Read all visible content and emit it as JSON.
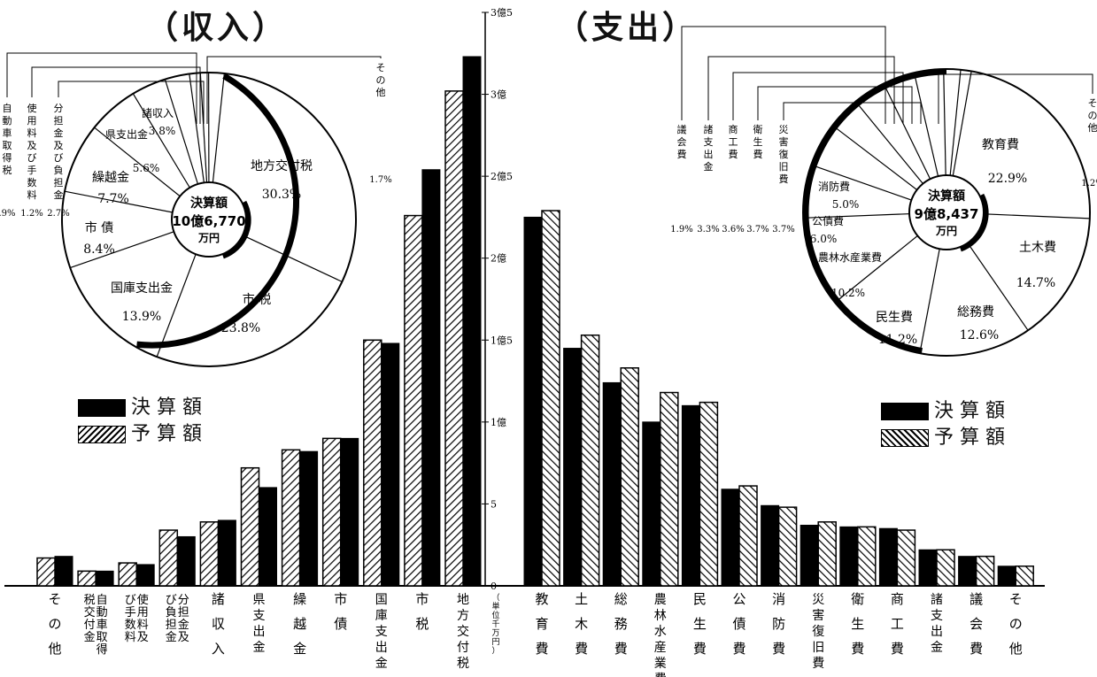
{
  "titles": {
    "income": "（収入）",
    "expense": "（支出）"
  },
  "legend_income": {
    "actual": "決 算 額",
    "budget": "予 算 額"
  },
  "legend_expense": {
    "actual": "決 算 額",
    "budget": "予 算 額"
  },
  "axis": {
    "ticks": [
      "0",
      "5",
      "1億",
      "1億5",
      "2億",
      "2億5",
      "3億",
      "3億5"
    ],
    "unit": "（単位千万円）"
  },
  "colors": {
    "actual": "#000000",
    "budget_hatch": "#000000",
    "background": "#ffffff"
  },
  "income_pie": {
    "center_title": "決算額",
    "center_amount": "10億6,770",
    "center_unit": "万円",
    "slices": [
      {
        "label": "地方交付税",
        "pct": "30.3%",
        "value": 30.3
      },
      {
        "label": "市 税",
        "pct": "23.8%",
        "value": 23.8
      },
      {
        "label": "国庫支出金",
        "pct": "13.9%",
        "value": 13.9
      },
      {
        "label": "市 債",
        "pct": "8.4%",
        "value": 8.4
      },
      {
        "label": "繰越金",
        "pct": "7.7%",
        "value": 7.7
      },
      {
        "label": "県支出金",
        "pct": "5.6%",
        "value": 5.6
      },
      {
        "label": "諸収入",
        "pct": "3.8%",
        "value": 3.8
      },
      {
        "label": "分担金及び負担金",
        "pct": "2.7%",
        "value": 2.7
      },
      {
        "label": "使用料及び手数料",
        "pct": "1.2%",
        "value": 1.2
      },
      {
        "label": "自動車取得税",
        "pct": ".9%",
        "value": 0.9
      },
      {
        "label": "その他",
        "pct": "1.7%",
        "value": 1.7
      }
    ]
  },
  "expense_pie": {
    "center_title": "決算額",
    "center_amount": "9億8,437",
    "center_unit": "万円",
    "slices": [
      {
        "label": "教育費",
        "pct": "22.9%",
        "value": 22.9
      },
      {
        "label": "土木費",
        "pct": "14.7%",
        "value": 14.7
      },
      {
        "label": "総務費",
        "pct": "12.6%",
        "value": 12.6
      },
      {
        "label": "民生費",
        "pct": "11.2%",
        "value": 11.2
      },
      {
        "label": "農林水産業費",
        "pct": "10.2%",
        "value": 10.2
      },
      {
        "label": "公債費",
        "pct": "6.0%",
        "value": 6.0
      },
      {
        "label": "消防費",
        "pct": "5.0%",
        "value": 5.0
      },
      {
        "label": "災害復旧費",
        "pct": "3.7%",
        "value": 3.7
      },
      {
        "label": "衛生費",
        "pct": "3.7%",
        "value": 3.7
      },
      {
        "label": "商工費",
        "pct": "3.6%",
        "value": 3.6
      },
      {
        "label": "諸支出金",
        "pct": "3.3%",
        "value": 3.3
      },
      {
        "label": "議会費",
        "pct": "1.9%",
        "value": 1.9
      },
      {
        "label": "その他",
        "pct": "1.2%",
        "value": 1.2
      }
    ]
  },
  "chart_data": [
    {
      "type": "bar",
      "title": "（収入）",
      "ylabel": "（単位千万円）",
      "ylim": [
        0,
        35
      ],
      "categories": [
        "その他",
        "自動車取得税交付金",
        "使用料及び手数料",
        "分担金及び負担金",
        "諸収入",
        "県支出金",
        "繰越金",
        "市債",
        "国庫支出金",
        "市税",
        "地方交付税"
      ],
      "series": [
        {
          "name": "決算額",
          "values": [
            1.8,
            0.9,
            1.3,
            3.0,
            4.0,
            6.0,
            8.2,
            9.0,
            14.8,
            25.4,
            32.3
          ]
        },
        {
          "name": "予算額",
          "values": [
            1.7,
            0.9,
            1.4,
            3.4,
            3.9,
            7.2,
            8.3,
            9.0,
            15.0,
            22.6,
            30.2
          ]
        }
      ]
    },
    {
      "type": "bar",
      "title": "（支出）",
      "ylim": [
        0,
        35
      ],
      "categories": [
        "教育費",
        "土木費",
        "総務費",
        "農林水産業費",
        "民生費",
        "公債費",
        "消防費",
        "災害復旧費",
        "衛生費",
        "商工費",
        "諸支出金",
        "議会費",
        "その他"
      ],
      "series": [
        {
          "name": "決算額",
          "values": [
            22.5,
            14.5,
            12.4,
            10.0,
            11.0,
            5.9,
            4.9,
            3.7,
            3.6,
            3.5,
            2.2,
            1.8,
            1.2
          ]
        },
        {
          "name": "予算額",
          "values": [
            22.9,
            15.3,
            13.3,
            11.8,
            11.2,
            6.1,
            4.8,
            3.9,
            3.6,
            3.4,
            2.2,
            1.8,
            1.2
          ]
        }
      ]
    },
    {
      "type": "pie",
      "title": "（収入）",
      "categories": [
        "地方交付税",
        "市税",
        "国庫支出金",
        "市債",
        "繰越金",
        "県支出金",
        "諸収入",
        "分担金及び負担金",
        "使用料及び手数料",
        "自動車取得税",
        "その他"
      ],
      "values": [
        30.3,
        23.8,
        13.9,
        8.4,
        7.7,
        5.6,
        3.8,
        2.7,
        1.2,
        0.9,
        1.7
      ]
    },
    {
      "type": "pie",
      "title": "（支出）",
      "categories": [
        "教育費",
        "土木費",
        "総務費",
        "民生費",
        "農林水産業費",
        "公債費",
        "消防費",
        "災害復旧費",
        "衛生費",
        "商工費",
        "諸支出金",
        "議会費",
        "その他"
      ],
      "values": [
        22.9,
        14.7,
        12.6,
        11.2,
        10.2,
        6.0,
        5.0,
        3.7,
        3.7,
        3.6,
        3.3,
        1.9,
        1.2
      ]
    }
  ]
}
